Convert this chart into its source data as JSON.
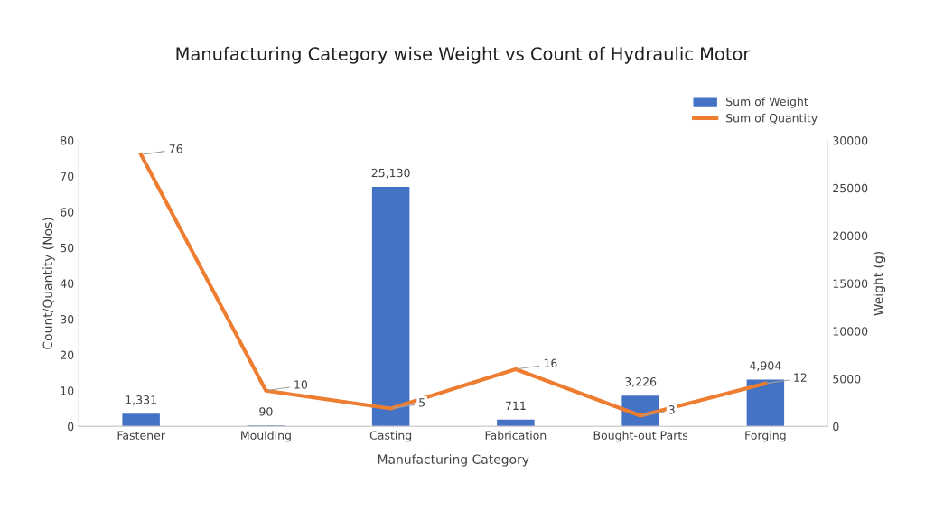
{
  "chart_data": {
    "type": "bar",
    "title": "Manufacturing Category wise Weight vs Count of Hydraulic Motor",
    "xlabel": "Manufacturing Category",
    "ylabel": "Count/Quantity (Nos)",
    "y2label": "Weight (g)",
    "categories": [
      "Fastener",
      "Moulding",
      "Casting",
      "Fabrication",
      "Bought-out Parts",
      "Forging"
    ],
    "series": [
      {
        "name": "Sum of Weight",
        "axis": "y2",
        "color": "#4472c4",
        "values": [
          1331,
          90,
          25130,
          711,
          3226,
          4904
        ],
        "value_labels": [
          "1,331",
          "90",
          "25,130",
          "711",
          "3,226",
          "4,904"
        ]
      },
      {
        "name": "Sum of Quantity",
        "type": "line",
        "axis": "y",
        "color": "#ed7d31",
        "values": [
          76,
          10,
          5,
          16,
          3,
          12
        ],
        "value_labels": [
          "76",
          "10",
          "5",
          "16",
          "3",
          "12"
        ]
      }
    ],
    "ylim": [
      0,
      80
    ],
    "yticks": [
      0,
      10,
      20,
      30,
      40,
      50,
      60,
      70,
      80
    ],
    "y2lim": [
      0,
      30000
    ],
    "y2ticks": [
      0,
      5000,
      10000,
      15000,
      20000,
      25000,
      30000
    ],
    "grid": false,
    "legend": "top right",
    "marker": "none",
    "line_style": "solid"
  }
}
